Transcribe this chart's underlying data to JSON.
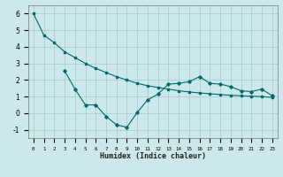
{
  "xlabel": "Humidex (Indice chaleur)",
  "ylabel": "",
  "background_color": "#cce8ea",
  "grid_color": "#aacfd2",
  "line_color": "#006b6b",
  "xlim": [
    -0.5,
    23.5
  ],
  "ylim": [
    -1.5,
    6.5
  ],
  "xtick_labels": [
    "0",
    "1",
    "2",
    "3",
    "4",
    "5",
    "6",
    "7",
    "8",
    "9",
    "10",
    "11",
    "12",
    "13",
    "14",
    "15",
    "16",
    "17",
    "18",
    "19",
    "20",
    "21",
    "22",
    "23"
  ],
  "ytick_values": [
    -1,
    0,
    1,
    2,
    3,
    4,
    5,
    6
  ],
  "line1_x": [
    0,
    1,
    2,
    3,
    4,
    5,
    6,
    7,
    8,
    9,
    10,
    11,
    12,
    13,
    14,
    15,
    16,
    17,
    18,
    19,
    20,
    21,
    22,
    23
  ],
  "line1_y": [
    6.0,
    4.7,
    4.25,
    3.7,
    3.35,
    3.0,
    2.7,
    2.45,
    2.2,
    2.0,
    1.8,
    1.65,
    1.55,
    1.45,
    1.35,
    1.28,
    1.22,
    1.17,
    1.12,
    1.08,
    1.05,
    1.02,
    1.0,
    0.95
  ],
  "line2_x": [
    3,
    4,
    5,
    6,
    7,
    8,
    9,
    10,
    11,
    12,
    13,
    14,
    15,
    16,
    17,
    18,
    19,
    20,
    21,
    22,
    23
  ],
  "line2_y": [
    2.55,
    1.45,
    0.5,
    0.5,
    -0.2,
    -0.7,
    -0.85,
    0.05,
    0.8,
    1.15,
    1.75,
    1.8,
    1.9,
    2.2,
    1.8,
    1.75,
    1.6,
    1.35,
    1.3,
    1.45,
    1.05
  ]
}
